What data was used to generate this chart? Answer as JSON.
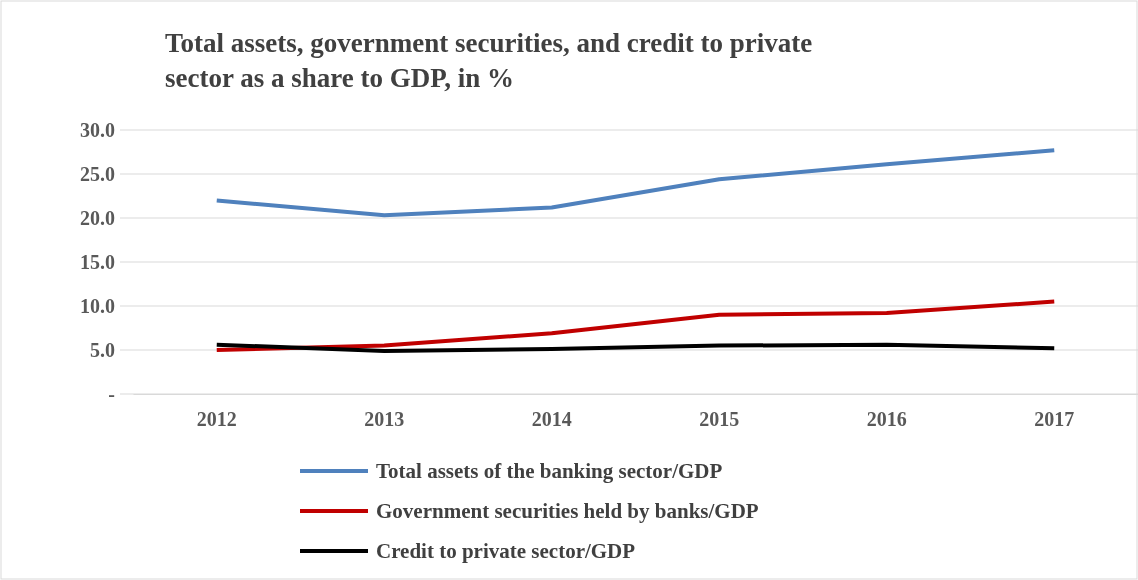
{
  "chart_data": {
    "type": "line",
    "title": "Total assets, government securities, and credit to private sector as a share to GDP, in %",
    "categories": [
      "2012",
      "2013",
      "2014",
      "2015",
      "2016",
      "2017"
    ],
    "series": [
      {
        "name": "Total assets of the banking sector/GDP",
        "color": "#4f81bd",
        "values": [
          22.0,
          20.3,
          21.2,
          24.4,
          26.1,
          27.7
        ]
      },
      {
        "name": "Government securities held by banks/GDP",
        "color": "#c00000",
        "values": [
          5.0,
          5.5,
          6.9,
          9.0,
          9.2,
          10.5
        ]
      },
      {
        "name": "Credit to private sector/GDP",
        "color": "#000000",
        "values": [
          5.6,
          4.9,
          5.1,
          5.5,
          5.6,
          5.2
        ]
      }
    ],
    "ylim": [
      0,
      30
    ],
    "yticks": [
      {
        "value": 0,
        "label": "-"
      },
      {
        "value": 5,
        "label": "5.0"
      },
      {
        "value": 10,
        "label": "10.0"
      },
      {
        "value": 15,
        "label": "15.0"
      },
      {
        "value": 20,
        "label": "20.0"
      },
      {
        "value": 25,
        "label": "25.0"
      },
      {
        "value": 30,
        "label": "30.0"
      }
    ],
    "grid": "y",
    "legend": "bottom",
    "marker": "none",
    "line_style": "solid"
  }
}
